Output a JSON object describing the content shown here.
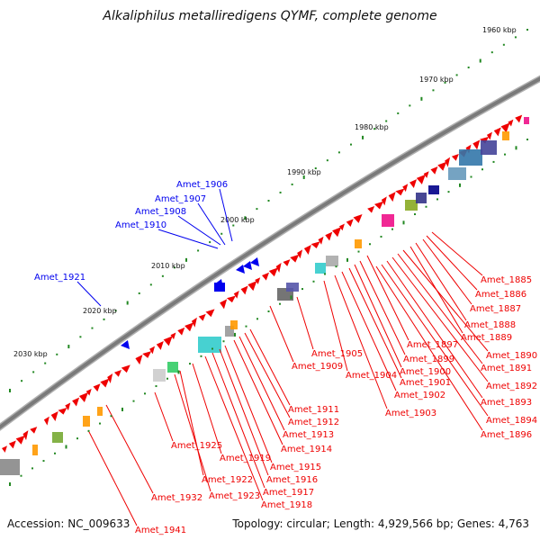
{
  "title": "Alkaliphilus metalliredigens QYMF, complete genome",
  "footer": {
    "accession": "Accession: NC_009633",
    "topology": "Topology: circular; Length: 4,929,566 bp; Genes: 4,763"
  },
  "colors": {
    "forward_gene": "#ee0000",
    "reverse_gene": "#0000ee",
    "backbone": "#7a7a7a",
    "tick": "#228822"
  },
  "kbp_ticks": [
    {
      "label": "1960 kbp"
    },
    {
      "label": "1970 kbp"
    },
    {
      "label": "1980 kbp"
    },
    {
      "label": "1990 kbp"
    },
    {
      "label": "2000 kbp"
    },
    {
      "label": "2010 kbp"
    },
    {
      "label": "2020 kbp"
    },
    {
      "label": "2030 kbp"
    }
  ],
  "blue_labels": [
    "Amet_1906",
    "Amet_1907",
    "Amet_1908",
    "Amet_1910",
    "Amet_1921"
  ],
  "red_labels": [
    "Amet_1885",
    "Amet_1886",
    "Amet_1887",
    "Amet_1888",
    "Amet_1889",
    "Amet_1890",
    "Amet_1891",
    "Amet_1892",
    "Amet_1893",
    "Amet_1894",
    "Amet_1896",
    "Amet_1897",
    "Amet_1899",
    "Amet_1900",
    "Amet_1901",
    "Amet_1902",
    "Amet_1903",
    "Amet_1904",
    "Amet_1905",
    "Amet_1909",
    "Amet_1911",
    "Amet_1912",
    "Amet_1913",
    "Amet_1914",
    "Amet_1915",
    "Amet_1916",
    "Amet_1917",
    "Amet_1918",
    "Amet_1919",
    "Amet_1922",
    "Amet_1923",
    "Amet_1925",
    "Amet_1932",
    "Amet_1941"
  ]
}
